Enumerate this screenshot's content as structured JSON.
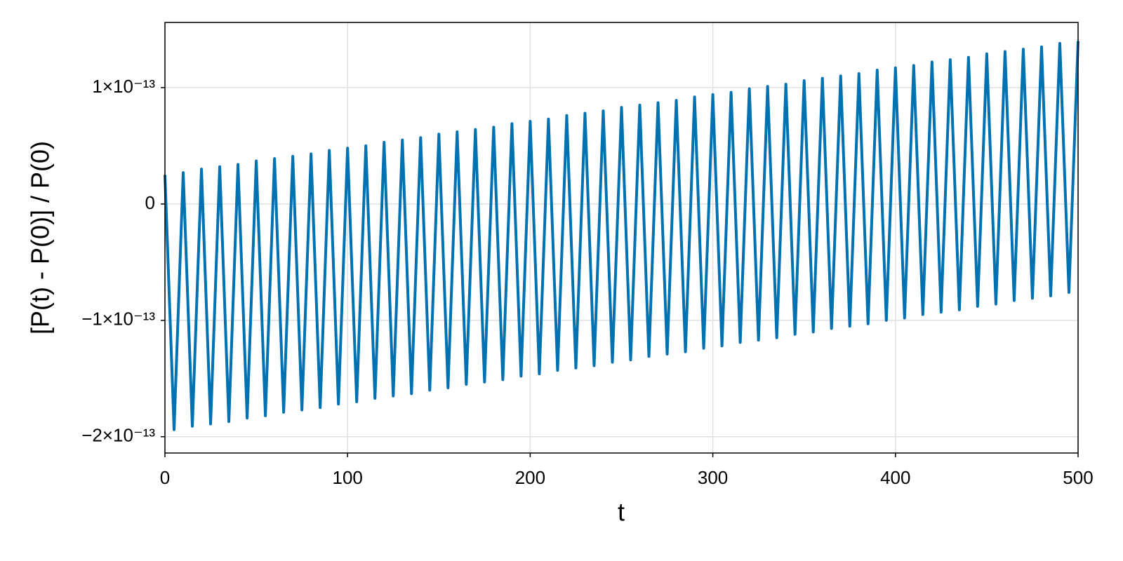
{
  "chart_data": {
    "type": "line",
    "xlabel": "t",
    "ylabel": "[P(t) - P(0)] / P(0)",
    "xlim": [
      0,
      500
    ],
    "xticks": [
      0,
      100,
      200,
      300,
      400,
      500
    ],
    "ylim": [
      -2.14e-13,
      1.56e-13
    ],
    "yticks": [
      {
        "value": -2e-13,
        "label": "−2×10⁻¹³"
      },
      {
        "value": -1e-13,
        "label": "−1×10⁻¹³"
      },
      0,
      {
        "value": 1e-13,
        "label": "1×10⁻¹³"
      }
    ],
    "grid": true,
    "x": [
      0,
      5,
      10,
      15,
      20,
      25,
      30,
      35,
      40,
      45,
      50,
      55,
      60,
      65,
      70,
      75,
      80,
      85,
      90,
      95,
      100,
      105,
      110,
      115,
      120,
      125,
      130,
      135,
      140,
      145,
      150,
      155,
      160,
      165,
      170,
      175,
      180,
      185,
      190,
      195,
      200,
      205,
      210,
      215,
      220,
      225,
      230,
      235,
      240,
      245,
      250,
      255,
      260,
      265,
      270,
      275,
      280,
      285,
      290,
      295,
      300,
      305,
      310,
      315,
      320,
      325,
      330,
      335,
      340,
      345,
      350,
      355,
      360,
      365,
      370,
      375,
      380,
      385,
      390,
      395,
      400,
      405,
      410,
      415,
      420,
      425,
      430,
      435,
      440,
      445,
      450,
      455,
      460,
      465,
      470,
      475,
      480,
      485,
      490,
      495,
      500
    ],
    "series": [
      {
        "color": "#0072b2",
        "values": [
          2.5e-14,
          -1.94e-13,
          2.7e-14,
          -1.91e-13,
          3e-14,
          -1.89e-13,
          3.2e-14,
          -1.87e-13,
          3.4e-14,
          -1.84e-13,
          3.7e-14,
          -1.82e-13,
          3.9e-14,
          -1.79e-13,
          4.1e-14,
          -1.77e-13,
          4.3e-14,
          -1.75e-13,
          4.6e-14,
          -1.72e-13,
          4.8e-14,
          -1.7e-13,
          5e-14,
          -1.67e-13,
          5.3e-14,
          -1.65e-13,
          5.5e-14,
          -1.63e-13,
          5.7e-14,
          -1.6e-13,
          6e-14,
          -1.58e-13,
          6.2e-14,
          -1.55e-13,
          6.4e-14,
          -1.53e-13,
          6.6e-14,
          -1.51e-13,
          6.9e-14,
          -1.48e-13,
          7.1e-14,
          -1.46e-13,
          7.3e-14,
          -1.43e-13,
          7.6e-14,
          -1.41e-13,
          7.8e-14,
          -1.39e-13,
          8e-14,
          -1.36e-13,
          8.3e-14,
          -1.34e-13,
          8.5e-14,
          -1.31e-13,
          8.7e-14,
          -1.29e-13,
          8.9e-14,
          -1.27e-13,
          9.2e-14,
          -1.24e-13,
          9.4e-14,
          -1.22e-13,
          9.6e-14,
          -1.19e-13,
          9.9e-14,
          -1.17e-13,
          1.01e-13,
          -1.15e-13,
          1.03e-13,
          -1.12e-13,
          1.06e-13,
          -1.1e-13,
          1.08e-13,
          -1.07e-13,
          1.1e-13,
          -1.05e-13,
          1.12e-13,
          -1.03e-13,
          1.15e-13,
          -1e-13,
          1.17e-13,
          -9.8e-14,
          1.19e-13,
          -9.5e-14,
          1.22e-13,
          -9.3e-14,
          1.24e-13,
          -9.1e-14,
          1.26e-13,
          -8.8e-14,
          1.29e-13,
          -8.6e-14,
          1.31e-13,
          -8.3e-14,
          1.33e-13,
          -8.1e-14,
          1.35e-13,
          -7.9e-14,
          1.38e-13,
          -7.6e-14,
          1.4e-13
        ]
      }
    ]
  }
}
